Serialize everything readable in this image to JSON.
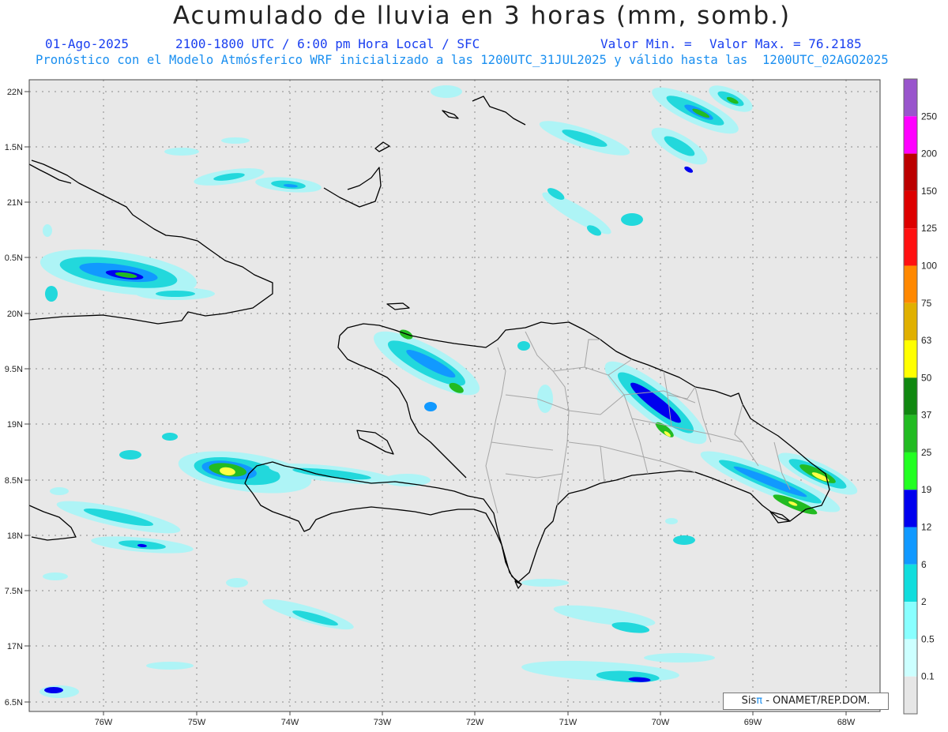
{
  "header": {
    "title": "Acumulado de lluvia en 3 horas (mm, somb.)",
    "date": "01-Ago-2025",
    "period": "2100-1800 UTC / 6:00 pm Hora Local / SFC",
    "min_label": "Valor Min. =",
    "max_label": "Valor Max. = 76.2185",
    "model_info": "Pronóstico con el Modelo Atmósferico WRF inicializado a las 1200UTC_31JUL2025 y válido hasta las  1200UTC_02AGO2025"
  },
  "map": {
    "lat_labels": [
      "22N",
      "1.5N",
      "21N",
      "0.5N",
      "20N",
      "9.5N",
      "19N",
      "8.5N",
      "18N",
      "7.5N",
      "17N",
      "6.5N"
    ],
    "lon_labels": [
      "76W",
      "75W",
      "74W",
      "73W",
      "72W",
      "71W",
      "70W",
      "69W",
      "68W"
    ]
  },
  "legend": {
    "levels": [
      {
        "label": "250",
        "color": "#9955cc"
      },
      {
        "label": "200",
        "color": "#ff00ff"
      },
      {
        "label": "150",
        "color": "#bb0000"
      },
      {
        "label": "125",
        "color": "#dd0000"
      },
      {
        "label": "100",
        "color": "#ff1111"
      },
      {
        "label": "75",
        "color": "#ff8800"
      },
      {
        "label": "63",
        "color": "#e0b000"
      },
      {
        "label": "50",
        "color": "#ffff00"
      },
      {
        "label": "37",
        "color": "#118811"
      },
      {
        "label": "25",
        "color": "#22bb22"
      },
      {
        "label": "19",
        "color": "#22ff22"
      },
      {
        "label": "12",
        "color": "#0000ee"
      },
      {
        "label": "6",
        "color": "#1199ff"
      },
      {
        "label": "2",
        "color": "#11dddd"
      },
      {
        "label": "0.5",
        "color": "#88ffff"
      },
      {
        "label": "0.1",
        "color": "#ccffff"
      }
    ],
    "bottom_color": "#e6e6e6"
  },
  "credit": {
    "prefix": "Sis",
    "pi": "π",
    "suffix": " - ONAMET/REP.DOM."
  }
}
